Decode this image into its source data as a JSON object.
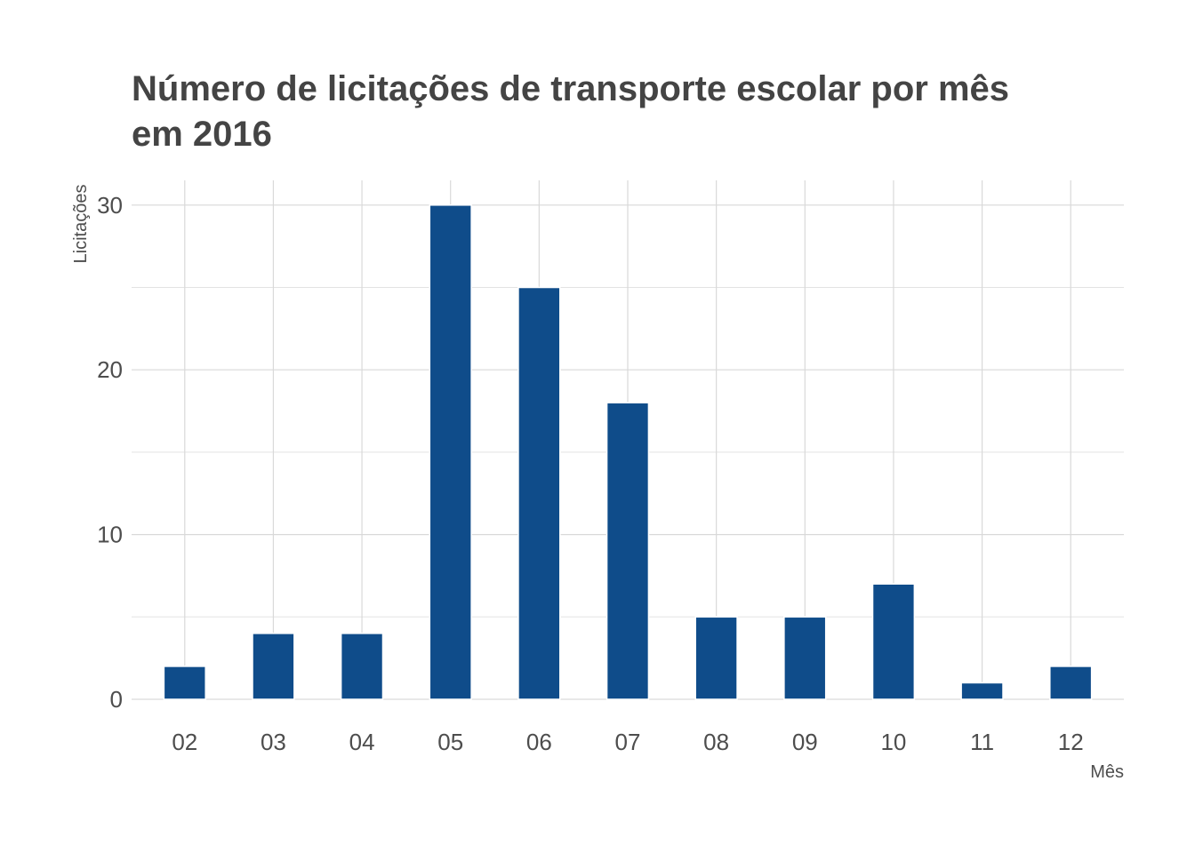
{
  "chart_data": {
    "type": "bar",
    "title_lines": [
      "Número de licitações de transporte escolar por mês",
      "em 2016"
    ],
    "xlabel": "Mês",
    "ylabel": "Licitações",
    "categories": [
      "02",
      "03",
      "04",
      "05",
      "06",
      "07",
      "08",
      "09",
      "10",
      "11",
      "12"
    ],
    "values": [
      2,
      4,
      4,
      30,
      25,
      18,
      5,
      5,
      7,
      1,
      2
    ],
    "y_ticks": [
      "0",
      "10",
      "20",
      "30"
    ],
    "y_tick_values": [
      0,
      10,
      20,
      30
    ],
    "y_minor_values": [
      5,
      15,
      25
    ],
    "ylim": [
      0,
      31.5
    ],
    "grid": true,
    "legend": "none",
    "bar_color": "#0f4c8a"
  }
}
